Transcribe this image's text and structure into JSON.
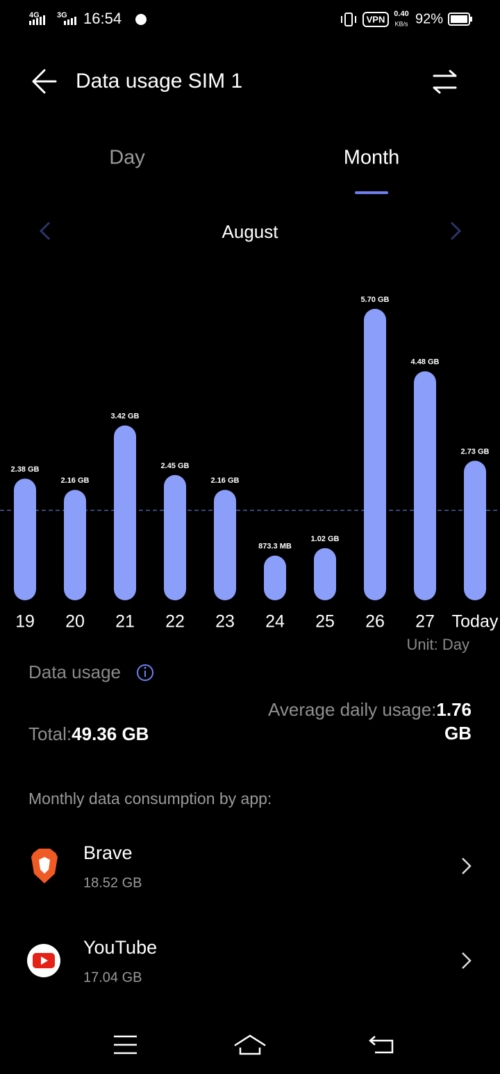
{
  "status_bar": {
    "network_1": "4G",
    "network_2": "3G",
    "time": "16:54",
    "vpn": "VPN",
    "speed": "0.40",
    "speed_unit": "KB/s",
    "battery": "92%"
  },
  "header": {
    "title": "Data usage SIM 1"
  },
  "tabs": [
    "Day",
    "Month"
  ],
  "period": "August",
  "chart_data": {
    "type": "bar",
    "categories": [
      "19",
      "20",
      "21",
      "22",
      "23",
      "24",
      "25",
      "26",
      "27",
      "Today"
    ],
    "values": [
      2.38,
      2.16,
      3.42,
      2.45,
      2.16,
      0.8733,
      1.02,
      5.7,
      4.48,
      2.73
    ],
    "value_labels": [
      "2.38 GB",
      "2.16 GB",
      "3.42 GB",
      "2.45 GB",
      "2.16 GB",
      "873.3 MB",
      "1.02 GB",
      "5.70 GB",
      "4.48 GB",
      "2.73 GB"
    ],
    "color": "#8b9ef9",
    "unit_note": "Unit: Day"
  },
  "summary": {
    "title": "Data usage",
    "total_label": "Total:",
    "total": "49.36 GB",
    "average_label": "Average daily usage:",
    "average": {
      "value": 1.76,
      "label": "1.76 GB"
    }
  },
  "apps": {
    "title": "Monthly data consumption by app:",
    "items": [
      {
        "name": "Brave",
        "usage": "18.52 GB"
      },
      {
        "name": "YouTube",
        "usage": "17.04 GB"
      }
    ]
  }
}
